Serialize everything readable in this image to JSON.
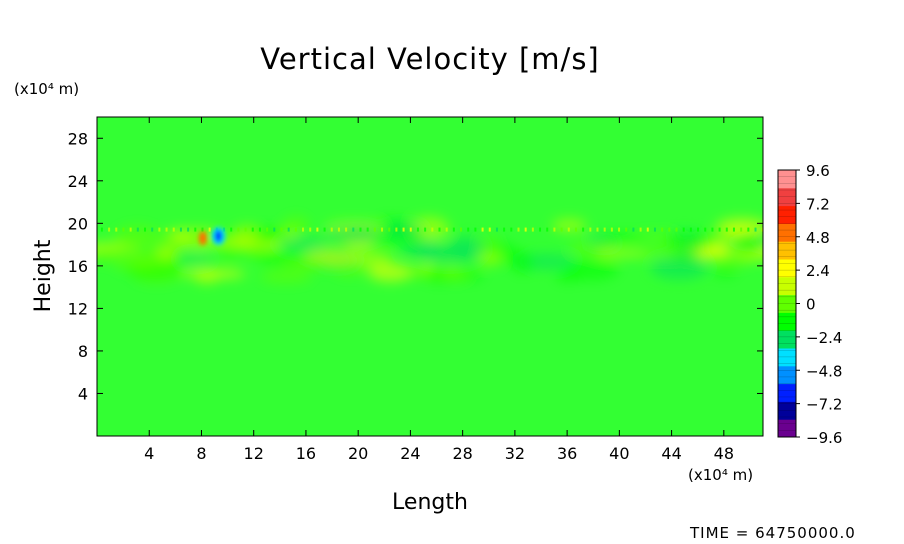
{
  "chart_data": {
    "type": "heatmap",
    "title": "Vertical Velocity [m/s]",
    "xlabel": "Length",
    "ylabel": "Height",
    "x_unit": "(x10⁴ m)",
    "y_unit": "(x10⁴ m)",
    "x_ticks": [
      4,
      8,
      12,
      16,
      20,
      24,
      28,
      32,
      36,
      40,
      44,
      48
    ],
    "y_ticks": [
      4,
      8,
      12,
      16,
      20,
      24,
      28
    ],
    "xlim": [
      0,
      51
    ],
    "ylim": [
      0,
      30
    ],
    "background_value": 0,
    "field_features": [
      {
        "kind": "wave band",
        "y_range": [
          15,
          20
        ],
        "value_range": [
          -3,
          3
        ]
      },
      {
        "kind": "downdraft",
        "x": 9.3,
        "y": 18.8,
        "value": -7
      }
    ],
    "colorbar": {
      "ticks": [
        9.6,
        7.2,
        4.8,
        2.4,
        0,
        -2.4,
        -4.8,
        -7.2,
        -9.6
      ],
      "labels": [
        "9.6",
        "7.2",
        "4.8",
        "2.4",
        "0",
        "−2.4",
        "−4.8",
        "−7.2",
        "−9.6"
      ],
      "range": [
        -9.6,
        9.6
      ],
      "colors": [
        "#6a008f",
        "#00009a",
        "#0020ff",
        "#0090ff",
        "#00e0ff",
        "#00e060",
        "#00ff00",
        "#60ff00",
        "#c8ff00",
        "#ffff00",
        "#ffc000",
        "#ff7000",
        "#ff2000",
        "#f04040",
        "#ff9090"
      ]
    },
    "footer": "TIME = 64750000.0"
  }
}
